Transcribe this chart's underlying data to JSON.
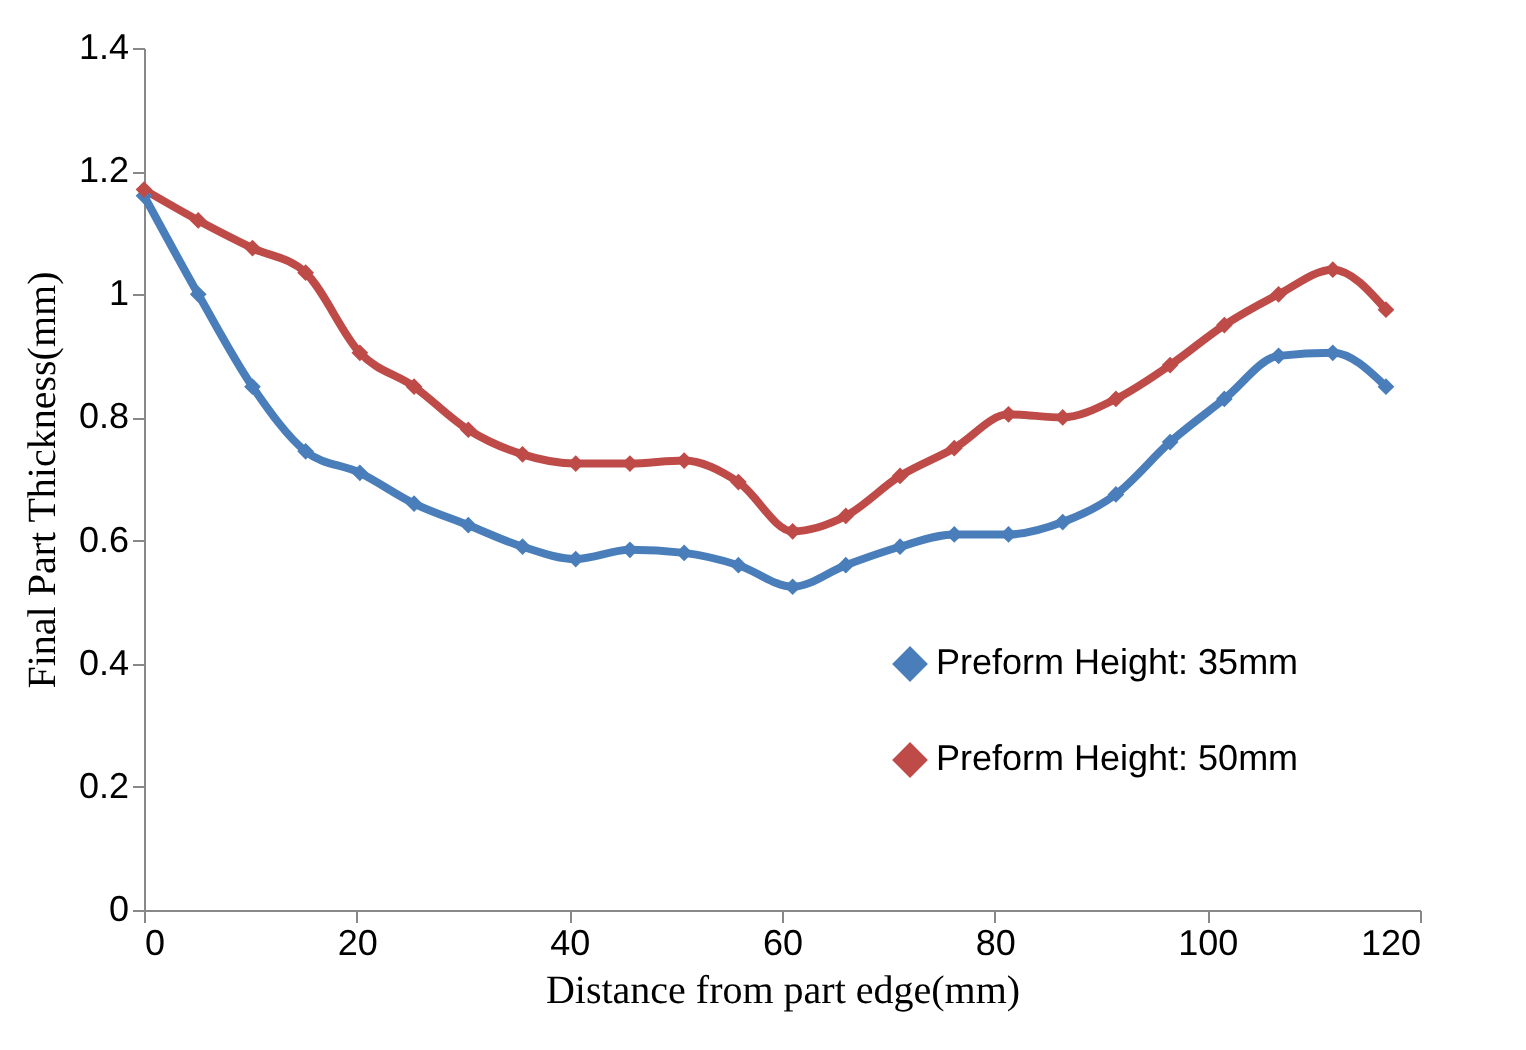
{
  "chart_data": {
    "type": "line",
    "xlabel": "Distance from part edge(mm)",
    "ylabel": "Final Part Thickness(mm)",
    "x": [
      0,
      5.1,
      10.2,
      15.2,
      20.3,
      25.4,
      30.5,
      35.6,
      40.6,
      45.7,
      50.8,
      55.9,
      61,
      66,
      71.1,
      76.2,
      81.3,
      86.4,
      91.4,
      96.5,
      101.6,
      106.7,
      111.8,
      116.8
    ],
    "series": [
      {
        "name": "Preform Height: 35mm",
        "color": "#4a7ebb",
        "values": [
          1.16,
          1.0,
          0.85,
          0.745,
          0.71,
          0.66,
          0.625,
          0.59,
          0.57,
          0.585,
          0.58,
          0.56,
          0.525,
          0.56,
          0.59,
          0.61,
          0.61,
          0.63,
          0.675,
          0.76,
          0.83,
          0.9,
          0.905,
          0.85
        ]
      },
      {
        "name": "Preform Height: 50mm",
        "color": "#be4b48",
        "values": [
          1.17,
          1.12,
          1.075,
          1.035,
          0.905,
          0.85,
          0.78,
          0.74,
          0.725,
          0.725,
          0.73,
          0.695,
          0.615,
          0.64,
          0.705,
          0.75,
          0.805,
          0.8,
          0.83,
          0.885,
          0.95,
          1.0,
          1.04,
          0.975
        ]
      }
    ],
    "xlim": [
      0,
      120
    ],
    "xticks": [
      0,
      20,
      40,
      60,
      80,
      100,
      120
    ],
    "ylim": [
      0,
      1.4
    ],
    "yticks": [
      0,
      0.2,
      0.4,
      0.6,
      0.8,
      1,
      1.2,
      1.4
    ],
    "grid": false,
    "legend": "bottom right",
    "marker": "diamond",
    "line_style": "solid"
  }
}
